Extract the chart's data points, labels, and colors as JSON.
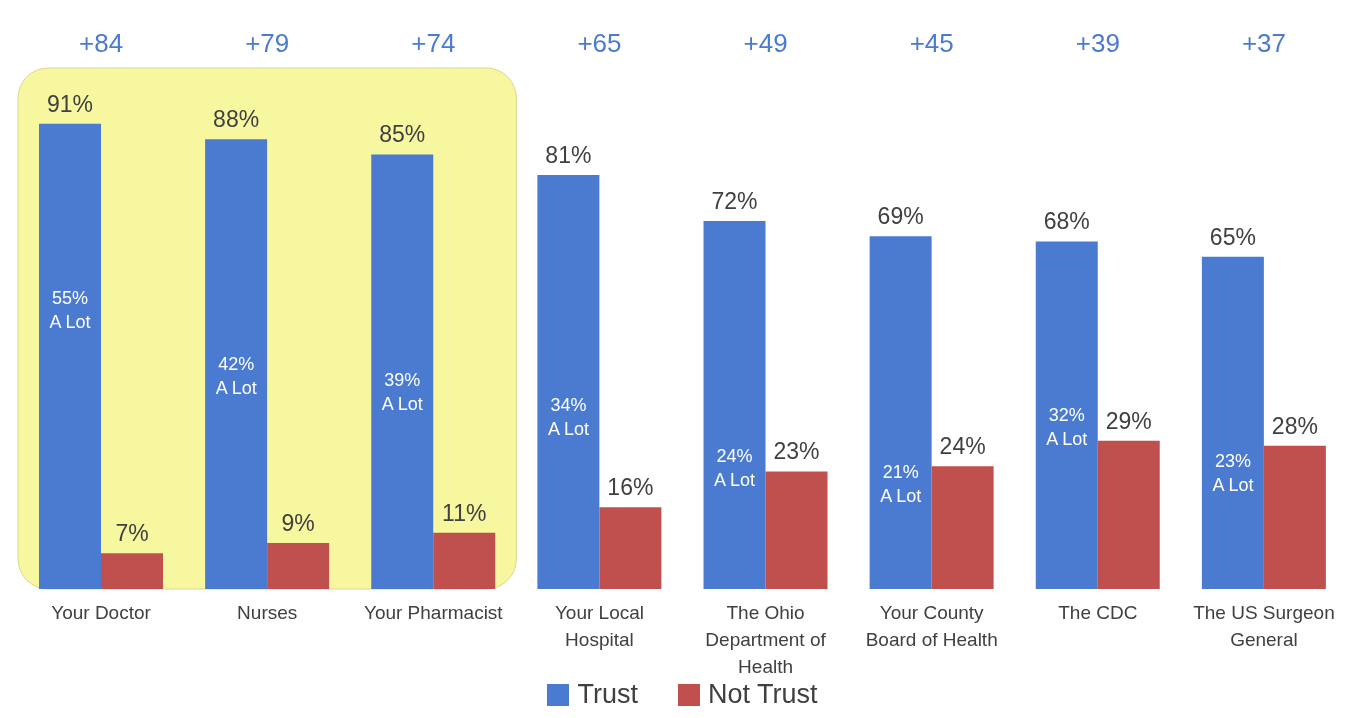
{
  "chart_data": {
    "type": "bar",
    "categories": [
      "Your Doctor",
      "Nurses",
      "Your Pharmacist",
      "Your Local Hospital",
      "The Ohio Department of Health",
      "Your County Board of Health",
      "The CDC",
      "The US Surgeon General"
    ],
    "series": [
      {
        "name": "Trust",
        "color": "#4a7bd0",
        "values": [
          91,
          88,
          85,
          81,
          72,
          69,
          68,
          65
        ],
        "value_labels": [
          "91%",
          "88%",
          "85%",
          "81%",
          "72%",
          "69%",
          "68%",
          "65%"
        ]
      },
      {
        "name": "Not Trust",
        "color": "#c0504d",
        "values": [
          7,
          9,
          11,
          16,
          23,
          24,
          29,
          28
        ],
        "value_labels": [
          "7%",
          "9%",
          "11%",
          "16%",
          "23%",
          "24%",
          "29%",
          "28%"
        ]
      }
    ],
    "annotations": [
      "+84",
      "+79",
      "+74",
      "+65",
      "+49",
      "+45",
      "+39",
      "+37",
      {
        "text": "55% A Lot",
        "x": "Your Doctor",
        "y": 55
      },
      {
        "text": "42% A Lot",
        "x": "Nurses",
        "y": 42
      },
      {
        "text": "39% A Lot",
        "x": "Your Pharmacist",
        "y": 39
      },
      {
        "text": "34% A Lot",
        "x": "Your Local Hospital",
        "y": 34
      },
      {
        "text": "24% A Lot",
        "x": "The Ohio Department of Health",
        "y": 24
      },
      {
        "text": "21% A Lot",
        "x": "Your County Board of Health",
        "y": 21
      },
      {
        "text": "32% A Lot",
        "x": "The CDC",
        "y": 32
      },
      {
        "text": "23% A Lot",
        "x": "The US Surgeon General",
        "y": 23
      }
    ],
    "bands": [
      {
        "axis": "x",
        "from": "Your Doctor",
        "to": "Your Pharmacist",
        "color": "#f7f7a0"
      }
    ],
    "legend": "bottom",
    "grid": false
  }
}
